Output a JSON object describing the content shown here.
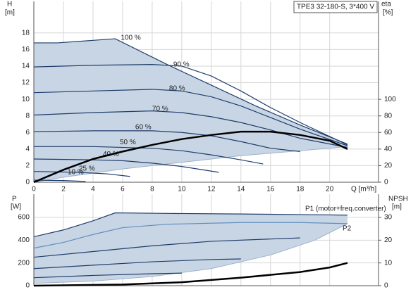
{
  "chart_data": [
    {
      "type": "line",
      "title": "TPE3 32-180-S, 3*400 V",
      "y_label": "H",
      "y_unit": "[m]",
      "y2_label": "eta",
      "y2_unit": "[%]",
      "x_label": "Q [m³/h]",
      "xlim": [
        0,
        23.3
      ],
      "xticks": [
        0,
        2,
        4,
        6,
        8,
        10,
        12,
        14,
        16,
        18,
        20
      ],
      "xtick_labels": true,
      "ylim": [
        0,
        21.8
      ],
      "yticks": [
        0,
        2,
        4,
        6,
        8,
        10,
        12,
        14,
        16,
        18
      ],
      "y2lim": [
        0,
        218
      ],
      "y2ticks": [
        0,
        20,
        40,
        60,
        80,
        100
      ],
      "grid": true,
      "range": {
        "color": "#c8d5e4",
        "x": [
          0,
          2,
          4,
          6,
          8,
          10,
          12,
          14,
          16,
          18,
          21.2
        ],
        "lower": [
          0,
          0.6,
          1.1,
          1.6,
          2.0,
          2.4,
          2.8,
          3.2,
          3.5,
          3.8,
          4.3
        ]
      },
      "series": [
        {
          "name": "100 %",
          "color": "#1f3d6b",
          "x": [
            0,
            1.6,
            5.5,
            9,
            12,
            15,
            18,
            21.2
          ],
          "values": [
            16.8,
            16.8,
            17.3,
            14.2,
            11.7,
            9.2,
            6.9,
            4.6
          ]
        },
        {
          "name": "90 %",
          "color": "#1f3d6b",
          "x": [
            0,
            4,
            8,
            10,
            12,
            14,
            16,
            18,
            21.2
          ],
          "values": [
            13.9,
            14.1,
            14.2,
            14,
            12.8,
            11,
            9,
            7.2,
            4.5
          ]
        },
        {
          "name": "80 %",
          "color": "#1f3d6b",
          "x": [
            0,
            4,
            8,
            10,
            12,
            14,
            16,
            18,
            21.2
          ],
          "values": [
            10.8,
            11,
            11.2,
            11,
            10.3,
            9.2,
            7.8,
            6.4,
            4.4
          ]
        },
        {
          "name": "70 %",
          "color": "#1f3d6b",
          "x": [
            0,
            4,
            8,
            10,
            12,
            14,
            16,
            18,
            21.2
          ],
          "values": [
            8.1,
            8.4,
            8.6,
            8.4,
            7.9,
            7.2,
            6.3,
            5.3,
            4.2
          ]
        },
        {
          "name": "60 %",
          "color": "#1f3d6b",
          "x": [
            0,
            4,
            8,
            10,
            12,
            14,
            16,
            18
          ],
          "values": [
            6.1,
            6.2,
            6.2,
            6,
            5.6,
            4.9,
            4.1,
            3.7
          ]
        },
        {
          "name": "50 %",
          "color": "#1f3d6b",
          "x": [
            0,
            4,
            8,
            10,
            12,
            14,
            15.5
          ],
          "values": [
            4.3,
            4.3,
            4.1,
            3.8,
            3.3,
            2.7,
            2.2
          ]
        },
        {
          "name": "40 %",
          "color": "#1f3d6b",
          "x": [
            0,
            4,
            6,
            8,
            10,
            12.5
          ],
          "values": [
            2.8,
            2.7,
            2.6,
            2.3,
            1.9,
            1.2
          ]
        },
        {
          "name": "25 %",
          "color": "#1f3d6b",
          "x": [
            0,
            3,
            5,
            6.5
          ],
          "values": [
            1.3,
            1.2,
            1.0,
            0.7
          ]
        },
        {
          "name": "10 %",
          "color": "#1f3d6b",
          "x": [
            0,
            2,
            3.5
          ],
          "values": [
            0.25,
            0.2,
            0.1
          ]
        },
        {
          "color": "#000000",
          "axis": "y2",
          "line_width": 2.5,
          "x": [
            0,
            2,
            4,
            6,
            8,
            10,
            12,
            14,
            16,
            18,
            20,
            21.2
          ],
          "values": [
            0,
            15,
            28,
            37,
            45,
            52,
            57,
            61,
            61,
            57,
            50,
            40
          ]
        }
      ]
    },
    {
      "type": "line",
      "y_label": "P",
      "y_unit": "[W]",
      "y2_label": "NPSH",
      "y2_unit": "[m]",
      "xlim": [
        0,
        23.3
      ],
      "xticks": [
        0,
        2,
        4,
        6,
        8,
        10,
        12,
        14,
        16,
        18,
        20
      ],
      "xtick_labels": false,
      "ylim": [
        0,
        804
      ],
      "yticks": [
        0,
        200,
        400,
        600
      ],
      "y2lim": [
        0,
        40.2
      ],
      "y2ticks": [
        0,
        10,
        20,
        30
      ],
      "grid": true,
      "range": {
        "color": "#c8d5e4",
        "x": [
          0,
          4,
          8,
          12,
          16,
          19,
          21.2
        ],
        "lower": [
          20,
          40,
          80,
          150,
          270,
          400,
          545
        ]
      },
      "series": [
        {
          "name": "P1 (motor+freq.converter)",
          "color": "#1f3d6b",
          "x": [
            0,
            2,
            4,
            5.5,
            9,
            14,
            18,
            21.2
          ],
          "values": [
            430,
            490,
            570,
            640,
            635,
            630,
            625,
            620
          ]
        },
        {
          "name": "P2",
          "color": "#5f8fbf",
          "x": [
            0,
            2,
            4,
            6,
            9,
            14,
            18,
            21.2
          ],
          "values": [
            330,
            380,
            450,
            510,
            540,
            555,
            555,
            545
          ]
        },
        {
          "color": "#1f3d6b",
          "x": [
            0,
            4,
            8,
            12,
            16,
            18
          ],
          "values": [
            250,
            300,
            350,
            390,
            410,
            420
          ]
        },
        {
          "color": "#1f3d6b",
          "x": [
            0,
            4,
            8,
            12,
            14
          ],
          "values": [
            150,
            180,
            210,
            230,
            235
          ]
        },
        {
          "color": "#1f3d6b",
          "x": [
            0,
            4,
            8,
            10
          ],
          "values": [
            70,
            90,
            105,
            110
          ]
        },
        {
          "color": "#000000",
          "axis": "y2",
          "line_width": 2.5,
          "x": [
            0,
            6,
            10,
            14,
            18,
            20,
            21.2
          ],
          "values": [
            0,
            0.5,
            1.5,
            3.5,
            6,
            8,
            10
          ]
        }
      ]
    }
  ]
}
